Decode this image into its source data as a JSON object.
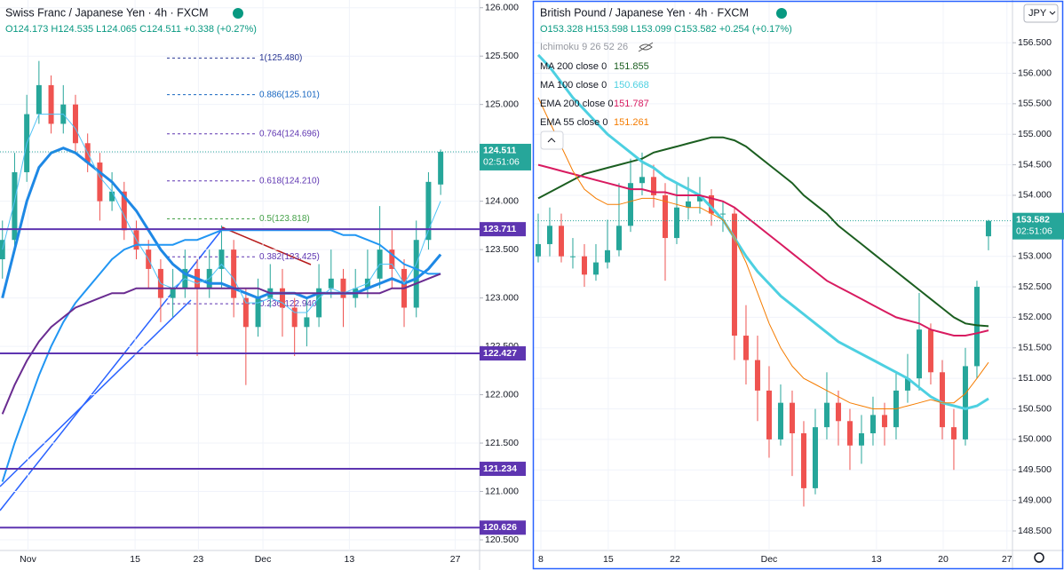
{
  "chart_data": [
    {
      "type": "candlestick",
      "title": "Swiss Franc / Japanese Yen · 4h · FXCM",
      "ohlc_text": "O124.173 H124.535 L124.065 C124.511 +0.338 (+0.27%)",
      "open": [
        123.4,
        123.6,
        124.3,
        124.9,
        125.2,
        124.8,
        125.0,
        124.6,
        124.4,
        124.0,
        124.1,
        123.7,
        123.5,
        123.3,
        123.0,
        123.1,
        123.3,
        123.1,
        123.3,
        123.5,
        123.0,
        122.7,
        123.0,
        123.1,
        122.9,
        122.7,
        122.8,
        123.1,
        123.2,
        123.0,
        123.1,
        123.2,
        123.5,
        123.3,
        122.9,
        123.6,
        124.173
      ],
      "high": [
        123.8,
        124.5,
        125.1,
        125.45,
        125.3,
        125.2,
        125.1,
        124.7,
        124.5,
        124.3,
        124.2,
        123.8,
        123.6,
        123.4,
        123.3,
        123.5,
        123.4,
        123.5,
        123.75,
        123.6,
        123.1,
        123.2,
        123.35,
        123.3,
        123.0,
        123.0,
        123.35,
        123.5,
        123.3,
        123.3,
        123.5,
        123.95,
        123.7,
        123.4,
        123.8,
        124.3,
        124.535
      ],
      "low": [
        123.2,
        123.5,
        124.2,
        124.8,
        124.7,
        124.7,
        124.5,
        124.3,
        123.8,
        123.9,
        123.6,
        123.4,
        123.1,
        122.75,
        122.8,
        123.0,
        122.4,
        123.0,
        123.1,
        122.8,
        122.1,
        122.6,
        122.9,
        122.6,
        122.4,
        122.5,
        122.7,
        123.0,
        122.7,
        122.9,
        123.0,
        123.1,
        123.1,
        122.7,
        122.8,
        123.5,
        124.065
      ],
      "close": [
        123.6,
        124.3,
        124.9,
        125.2,
        124.8,
        125.0,
        124.6,
        124.4,
        124.0,
        124.1,
        123.7,
        123.5,
        123.3,
        123.0,
        123.1,
        123.3,
        123.1,
        123.3,
        123.5,
        123.0,
        122.7,
        123.0,
        123.1,
        122.9,
        122.7,
        122.8,
        123.1,
        123.2,
        123.0,
        123.1,
        123.2,
        123.5,
        123.3,
        122.9,
        123.6,
        124.2,
        124.511
      ],
      "up_color": "#26a69a",
      "down_color": "#ef5350",
      "series": [
        {
          "color": "#1e88e5",
          "width": 3,
          "values": [
            123.0,
            123.5,
            124.0,
            124.35,
            124.5,
            124.55,
            124.5,
            124.4,
            124.3,
            124.2,
            124.05,
            123.9,
            123.7,
            123.5,
            123.35,
            123.25,
            123.2,
            123.15,
            123.15,
            123.1,
            123.05,
            123.0,
            123.05,
            123.05,
            123.05,
            123.0,
            123.05,
            123.05,
            123.05,
            123.05,
            123.1,
            123.15,
            123.2,
            123.15,
            123.2,
            123.3,
            123.45
          ]
        },
        {
          "color": "#4fc3f7",
          "width": 1,
          "values": [
            123.5,
            124.0,
            124.6,
            124.9,
            124.9,
            124.9,
            124.75,
            124.5,
            124.25,
            124.1,
            123.85,
            123.6,
            123.4,
            123.15,
            123.1,
            123.2,
            123.15,
            123.2,
            123.35,
            123.2,
            122.95,
            122.95,
            123.0,
            122.95,
            122.85,
            122.85,
            123.0,
            123.1,
            123.05,
            123.1,
            123.15,
            123.35,
            123.35,
            123.15,
            123.35,
            123.7,
            124.0
          ]
        },
        {
          "color": "#2196f3",
          "width": 2,
          "values": [
            121.1,
            121.5,
            121.85,
            122.2,
            122.5,
            122.75,
            122.95,
            123.1,
            123.25,
            123.4,
            123.5,
            123.55,
            123.55,
            123.55,
            123.55,
            123.6,
            123.6,
            123.65,
            123.7,
            123.7,
            123.7,
            123.7,
            123.7,
            123.7,
            123.7,
            123.7,
            123.7,
            123.7,
            123.65,
            123.65,
            123.6,
            123.55,
            123.45,
            123.35,
            123.3,
            123.25,
            123.25
          ]
        },
        {
          "color": "#6a2c91",
          "width": 2,
          "values": [
            121.8,
            122.1,
            122.35,
            122.55,
            122.7,
            122.8,
            122.9,
            122.95,
            123.0,
            123.05,
            123.05,
            123.1,
            123.1,
            123.1,
            123.1,
            123.1,
            123.1,
            123.1,
            123.1,
            123.1,
            123.1,
            123.1,
            123.05,
            123.05,
            123.05,
            123.05,
            123.05,
            123.05,
            123.05,
            123.05,
            123.05,
            123.05,
            123.1,
            123.1,
            123.15,
            123.2,
            123.25
          ]
        }
      ],
      "levels": [
        123.711,
        122.427,
        121.234,
        120.626
      ],
      "level_color": "#5e35b1",
      "fib": [
        {
          "value": 125.48,
          "label": "1(125.480)",
          "color": "#283593"
        },
        {
          "value": 125.101,
          "label": "0.886(125.101)",
          "color": "#1565c0"
        },
        {
          "value": 124.696,
          "label": "0.764(124.696)",
          "color": "#5e35b1"
        },
        {
          "value": 124.21,
          "label": "0.618(124.210)",
          "color": "#5e35b1"
        },
        {
          "value": 123.818,
          "label": "0.5(123.818)",
          "color": "#43a047"
        },
        {
          "value": 123.425,
          "label": "0.382(123.425)",
          "color": "#5e35b1"
        },
        {
          "value": 122.94,
          "label": "0.236(122.940)",
          "color": "#5e35b1"
        }
      ],
      "last_price": 124.511,
      "countdown": "02:51:06",
      "xlim": [
        -0.2,
        39.2
      ],
      "xticks": [
        {
          "value": 2.1,
          "label": "Nov"
        },
        {
          "value": 10.9,
          "label": "15"
        },
        {
          "value": 16.1,
          "label": "23"
        },
        {
          "value": 21.4,
          "label": "Dec"
        },
        {
          "value": 28.5,
          "label": "13"
        },
        {
          "value": 37.2,
          "label": "27"
        }
      ],
      "ylim": [
        120.39,
        126.08
      ],
      "yticks": [
        {
          "value": 120.5,
          "label": "120.500"
        },
        {
          "value": 121,
          "label": "121.000"
        },
        {
          "value": 121.5,
          "label": "121.500"
        },
        {
          "value": 122,
          "label": "122.000"
        },
        {
          "value": 122.5,
          "label": "122.500"
        },
        {
          "value": 123,
          "label": "123.000"
        },
        {
          "value": 123.5,
          "label": "123.500"
        },
        {
          "value": 124,
          "label": "124.000"
        },
        {
          "value": 124.5,
          "label": "124.500"
        },
        {
          "value": 125,
          "label": "125.000"
        },
        {
          "value": 125.5,
          "label": "125.500"
        },
        {
          "value": 126,
          "label": "126.000"
        }
      ],
      "grid": true
    },
    {
      "type": "candlestick",
      "title": "British Pound / Japanese Yen · 4h · FXCM",
      "ohlc_text": "O153.328 H153.598 L153.099 C153.582 +0.254 (+0.17%)",
      "indicator": "Ichimoku 9 26 52 26",
      "currency": "JPY",
      "open": [
        153.0,
        153.2,
        153.5,
        153.0,
        153.0,
        152.7,
        152.9,
        153.1,
        153.5,
        154.2,
        154.3,
        154.0,
        153.3,
        153.8,
        153.9,
        154.0,
        153.7,
        153.7,
        151.7,
        151.3,
        150.8,
        150.0,
        150.6,
        150.1,
        149.2,
        150.2,
        150.6,
        150.3,
        149.9,
        150.1,
        150.4,
        150.2,
        150.8,
        151.0,
        151.8,
        151.1,
        150.2,
        150.0,
        151.2,
        153.328
      ],
      "high": [
        153.7,
        153.8,
        153.7,
        153.3,
        153.2,
        153.2,
        153.6,
        154.2,
        154.6,
        154.7,
        154.5,
        154.2,
        154.2,
        154.3,
        154.3,
        154.1,
        153.9,
        153.8,
        152.2,
        151.7,
        151.2,
        150.9,
        150.8,
        150.3,
        150.5,
        151.1,
        150.8,
        150.5,
        150.4,
        150.7,
        150.6,
        151.1,
        151.4,
        152.4,
        151.9,
        151.3,
        150.5,
        151.5,
        152.6,
        153.598
      ],
      "low": [
        152.9,
        153.0,
        152.9,
        152.8,
        152.5,
        152.6,
        152.8,
        153.0,
        153.4,
        154.0,
        153.8,
        152.6,
        153.2,
        153.6,
        153.7,
        153.5,
        153.4,
        151.3,
        150.9,
        150.3,
        149.7,
        149.9,
        149.4,
        148.9,
        149.1,
        150.0,
        149.9,
        149.5,
        149.6,
        149.9,
        149.9,
        150.0,
        150.6,
        150.8,
        150.9,
        150.0,
        149.5,
        149.9,
        151.0,
        153.099
      ],
      "close": [
        153.2,
        153.5,
        153.0,
        153.0,
        152.7,
        152.9,
        153.1,
        153.5,
        154.2,
        154.3,
        154.0,
        153.3,
        153.8,
        153.9,
        154.0,
        153.7,
        153.7,
        151.7,
        151.3,
        150.8,
        150.0,
        150.6,
        150.1,
        149.2,
        150.2,
        150.6,
        150.3,
        149.9,
        150.1,
        150.4,
        150.2,
        150.8,
        151.0,
        151.8,
        151.1,
        150.2,
        150.0,
        151.2,
        152.5,
        153.582
      ],
      "up_color": "#26a69a",
      "down_color": "#ef5350",
      "series": [
        {
          "name": "MA 200 close 0",
          "color": "#1b5e20",
          "width": 2,
          "values": [
            153.95,
            154.05,
            154.15,
            154.25,
            154.35,
            154.4,
            154.45,
            154.5,
            154.55,
            154.6,
            154.7,
            154.75,
            154.8,
            154.85,
            154.9,
            154.95,
            154.95,
            154.9,
            154.8,
            154.65,
            154.5,
            154.35,
            154.2,
            154.0,
            153.85,
            153.7,
            153.5,
            153.35,
            153.2,
            153.05,
            152.9,
            152.75,
            152.6,
            152.45,
            152.3,
            152.15,
            152.0,
            151.9,
            151.87,
            151.855
          ]
        },
        {
          "name": "MA 100 close 0",
          "color": "#4dd0e1",
          "width": 3,
          "values": [
            156.3,
            156.1,
            155.85,
            155.6,
            155.4,
            155.2,
            155.0,
            154.85,
            154.7,
            154.55,
            154.45,
            154.3,
            154.2,
            154.1,
            154.0,
            153.8,
            153.6,
            153.3,
            153.0,
            152.75,
            152.55,
            152.35,
            152.2,
            152.05,
            151.9,
            151.75,
            151.6,
            151.5,
            151.4,
            151.3,
            151.2,
            151.1,
            151.0,
            150.85,
            150.7,
            150.6,
            150.55,
            150.5,
            150.55,
            150.668
          ]
        },
        {
          "name": "EMA 200 close 0",
          "color": "#d81b60",
          "width": 2,
          "values": [
            154.5,
            154.45,
            154.4,
            154.35,
            154.3,
            154.25,
            154.2,
            154.15,
            154.1,
            154.1,
            154.05,
            154.05,
            154.0,
            154.0,
            154.0,
            153.95,
            153.9,
            153.8,
            153.65,
            153.5,
            153.35,
            153.2,
            153.05,
            152.9,
            152.75,
            152.6,
            152.5,
            152.4,
            152.3,
            152.2,
            152.1,
            152.0,
            151.95,
            151.9,
            151.8,
            151.75,
            151.7,
            151.7,
            151.74,
            151.787
          ]
        },
        {
          "name": "EMA 55 close 0",
          "color": "#f57c00",
          "width": 1,
          "values": [
            155.6,
            155.2,
            154.8,
            154.4,
            154.1,
            153.95,
            153.85,
            153.85,
            153.9,
            153.95,
            153.95,
            153.9,
            153.85,
            153.8,
            153.8,
            153.7,
            153.6,
            153.3,
            152.9,
            152.4,
            151.9,
            151.5,
            151.2,
            151.0,
            150.9,
            150.8,
            150.7,
            150.6,
            150.55,
            150.5,
            150.5,
            150.5,
            150.55,
            150.6,
            150.65,
            150.6,
            150.6,
            150.75,
            151.0,
            151.261
          ]
        }
      ],
      "last_price": 153.582,
      "countdown": "02:51:06",
      "xlim": [
        -0.46,
        41.08
      ],
      "xticks": [
        {
          "value": 0.23,
          "label": "8"
        },
        {
          "value": 6.07,
          "label": "15"
        },
        {
          "value": 11.85,
          "label": "22"
        },
        {
          "value": 20,
          "label": "Dec"
        },
        {
          "value": 29.3,
          "label": "13"
        },
        {
          "value": 35.08,
          "label": "20"
        },
        {
          "value": 40.6,
          "label": "27"
        }
      ],
      "ylim": [
        148.18,
        157.2
      ],
      "yticks": [
        {
          "value": 148.5,
          "label": "148.500"
        },
        {
          "value": 149,
          "label": "149.000"
        },
        {
          "value": 149.5,
          "label": "149.500"
        },
        {
          "value": 150,
          "label": "150.000"
        },
        {
          "value": 150.5,
          "label": "150.500"
        },
        {
          "value": 151,
          "label": "151.000"
        },
        {
          "value": 151.5,
          "label": "151.500"
        },
        {
          "value": 152,
          "label": "152.000"
        },
        {
          "value": 152.5,
          "label": "152.500"
        },
        {
          "value": 153,
          "label": "153.000"
        },
        {
          "value": 153.5,
          "label": "153.500"
        },
        {
          "value": 154,
          "label": "154.000"
        },
        {
          "value": 154.5,
          "label": "154.500"
        },
        {
          "value": 155,
          "label": "155.000"
        },
        {
          "value": 155.5,
          "label": "155.500"
        },
        {
          "value": 156,
          "label": "156.000"
        },
        {
          "value": 156.5,
          "label": "156.500"
        }
      ],
      "grid": true
    }
  ]
}
